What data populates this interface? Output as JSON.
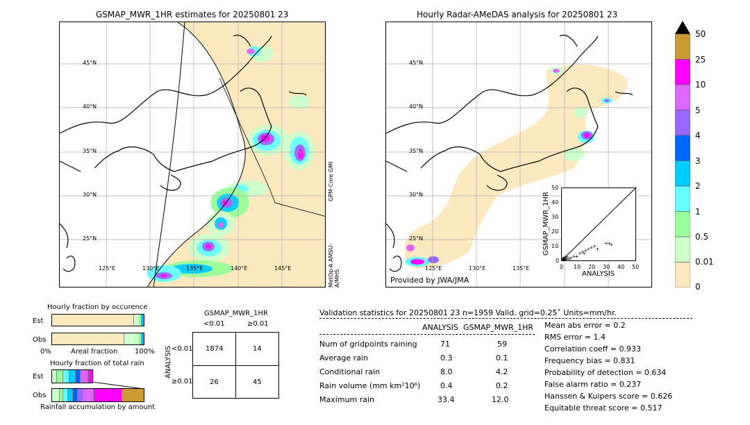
{
  "left_map": {
    "title": "GSMAP_MWR_1HR estimates for 20250801 23",
    "lat_labels": [
      "45°N",
      "40°N",
      "35°N",
      "30°N",
      "25°N"
    ],
    "lon_labels": [
      "125°E",
      "130°E",
      "135°E",
      "140°E",
      "145°E"
    ],
    "sensor_labels": [
      "GPM-Core GMI",
      "MetOp-A AMSU-A/MHS"
    ]
  },
  "right_map": {
    "title": "Hourly Radar-AMeDAS analysis for 20250801 23",
    "lat_labels": [
      "45°N",
      "40°N",
      "35°N",
      "30°N",
      "25°N"
    ],
    "lon_labels": [
      "125°E",
      "130°E",
      "135°E"
    ],
    "credit": "Provided by JWA/JMA"
  },
  "scatter": {
    "ylabel": "GSMAP_MWR_1HR",
    "xlabel": "ANALYSIS",
    "ticks": [
      "0",
      "10",
      "20",
      "30",
      "40",
      "50"
    ]
  },
  "colorbar": {
    "levels": [
      "50",
      "25",
      "10",
      "5",
      "4",
      "3",
      "2",
      "1",
      "0.5",
      "0.01",
      "0"
    ],
    "colors": [
      "#cc9933",
      "#ff00ff",
      "#dd66ff",
      "#9966ff",
      "#0066ff",
      "#00ccff",
      "#66ffff",
      "#99ff99",
      "#ccffcc",
      "#ffe8bf"
    ]
  },
  "occurrence": {
    "title": "Hourly fraction by occurence",
    "rows": [
      "Est",
      "Obs"
    ],
    "axis_left": "0%",
    "axis_mid": "Areal fraction",
    "axis_right": "100%"
  },
  "amount": {
    "title": "Hourly fraction of total rain",
    "rows": [
      "Est",
      "Obs"
    ],
    "footer": "Rainfall accumulation by amount"
  },
  "contingency": {
    "title": "GSMAP_MWR_1HR",
    "col_headers": [
      "<0.01",
      "≥0.01"
    ],
    "row_label": "ANALYSIS",
    "row_headers": [
      "<0.01",
      "≥0.01"
    ],
    "cells": [
      "1874",
      "14",
      "26",
      "45"
    ]
  },
  "validation": {
    "header": "Validation statistics for 20250801 23  n=1959 Valid. grid=0.25˚ Units=mm/hr.",
    "col_analysis": "ANALYSIS",
    "col_gsmap": "GSMAP_MWR_1HR",
    "rows": [
      {
        "label": "Num of gridpoints raining",
        "analysis": "71",
        "gsmap": "59"
      },
      {
        "label": "Average rain",
        "analysis": "0.3",
        "gsmap": "0.1"
      },
      {
        "label": "Conditional rain",
        "analysis": "8.0",
        "gsmap": "4.2"
      },
      {
        "label": "Rain volume (mm km²10⁶)",
        "analysis": "0.4",
        "gsmap": "0.2"
      },
      {
        "label": "Maximum rain",
        "analysis": "33.4",
        "gsmap": "12.0"
      }
    ],
    "scores": [
      "Mean abs error =    0.2",
      "RMS error =    1.4",
      "Correlation coeff =  0.933",
      "Frequency bias =  0.831",
      "Probability of detection =  0.634",
      "False alarm ratio =  0.237",
      "Hanssen & Kuipers score =  0.626",
      "Equitable threat score =  0.517"
    ]
  },
  "chart_data": {
    "type": "scatter",
    "xlabel": "ANALYSIS",
    "ylabel": "GSMAP_MWR_1HR",
    "xlim": [
      0,
      50
    ],
    "ylim": [
      0,
      50
    ],
    "points": [
      [
        0.5,
        0.3
      ],
      [
        1,
        0.5
      ],
      [
        1.5,
        1
      ],
      [
        2,
        0.8
      ],
      [
        2.5,
        1.5
      ],
      [
        3,
        1
      ],
      [
        1,
        2
      ],
      [
        0.5,
        1.5
      ],
      [
        4,
        2
      ],
      [
        5,
        1
      ],
      [
        6,
        2
      ],
      [
        8,
        3
      ],
      [
        10,
        3
      ],
      [
        12,
        5
      ],
      [
        14,
        6
      ],
      [
        15,
        5
      ],
      [
        16,
        7
      ],
      [
        18,
        8
      ],
      [
        20,
        9
      ],
      [
        22,
        10
      ],
      [
        24,
        8
      ],
      [
        30,
        12
      ],
      [
        32,
        12
      ],
      [
        33.4,
        11
      ],
      [
        2,
        2.5
      ],
      [
        3,
        3
      ],
      [
        1.2,
        0.2
      ],
      [
        0.8,
        0.9
      ]
    ]
  }
}
